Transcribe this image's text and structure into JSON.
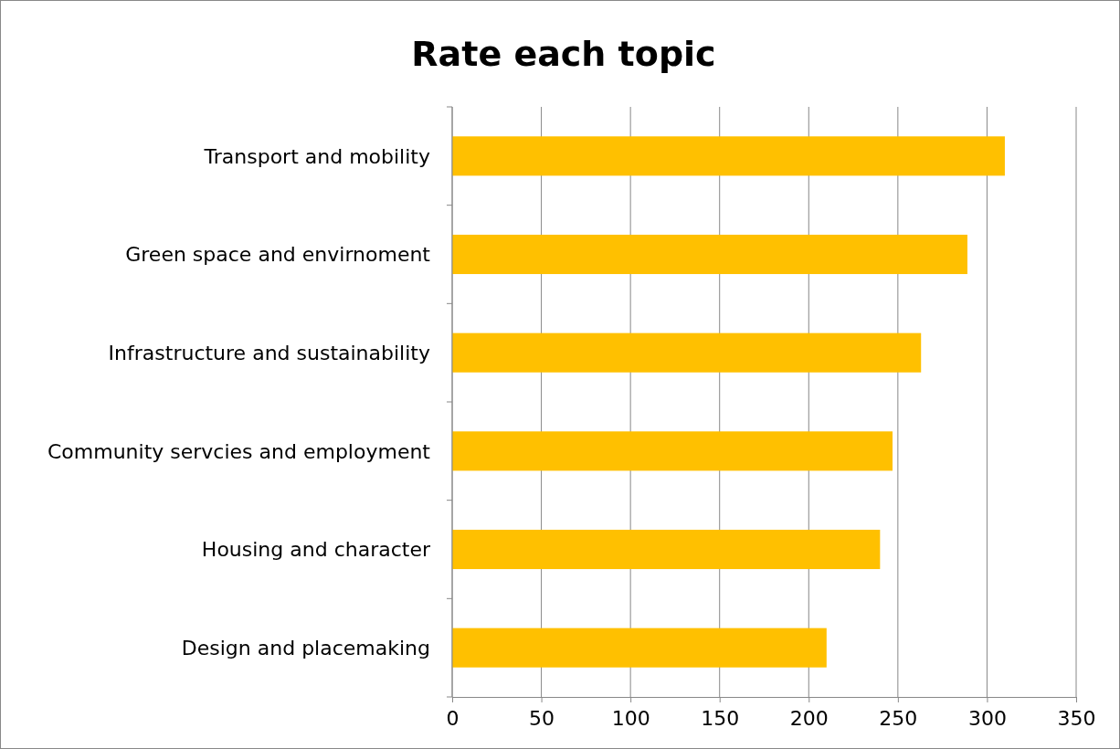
{
  "chart_data": {
    "type": "bar",
    "orientation": "horizontal",
    "title": "Rate each topic",
    "categories": [
      "Transport and mobility",
      "Green space and envirnoment",
      "Infrastructure and sustainability",
      "Community servcies and employment",
      "Housing and character",
      "Design and placemaking"
    ],
    "values": [
      310,
      289,
      263,
      247,
      240,
      210
    ],
    "color": "#ffc000",
    "xlim": [
      0,
      350
    ],
    "xticks": [
      0,
      50,
      100,
      150,
      200,
      250,
      300,
      350
    ],
    "grid": "x"
  }
}
